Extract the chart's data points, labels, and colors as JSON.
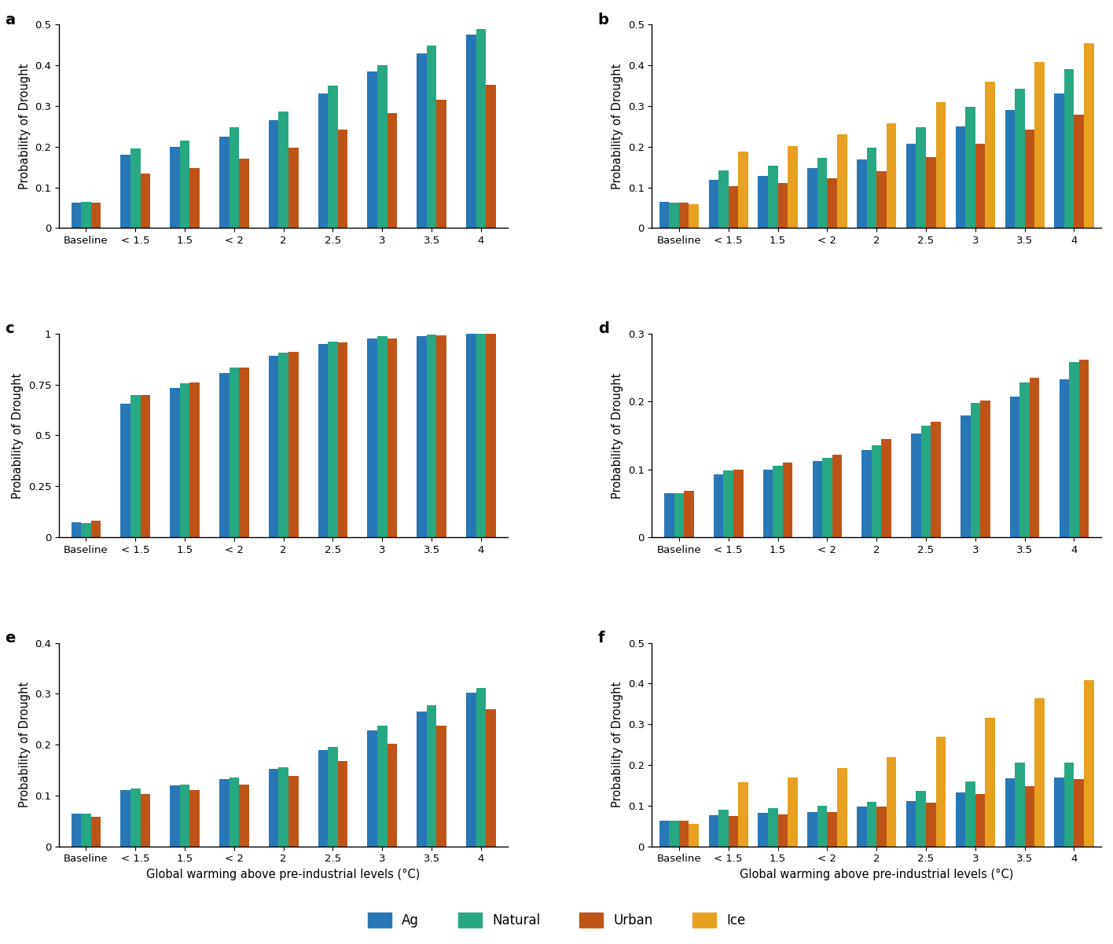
{
  "categories": [
    "Baseline",
    "< 1.5",
    "1.5",
    "< 2",
    "2",
    "2.5",
    "3",
    "3.5",
    "4"
  ],
  "colors": {
    "Ag": "#2878b8",
    "Natural": "#28a882",
    "Urban": "#bf5418",
    "Ice": "#e8a020"
  },
  "series_names": [
    "Ag",
    "Natural",
    "Urban",
    "Ice"
  ],
  "panels": {
    "a": {
      "ylim": [
        0,
        0.5
      ],
      "yticks": [
        0.0,
        0.1,
        0.2,
        0.3,
        0.4,
        0.5
      ],
      "data": {
        "Ag": [
          0.063,
          0.18,
          0.2,
          0.225,
          0.265,
          0.33,
          0.385,
          0.43,
          0.475
        ],
        "Natural": [
          0.065,
          0.195,
          0.215,
          0.248,
          0.287,
          0.35,
          0.4,
          0.448,
          0.49
        ],
        "Urban": [
          0.063,
          0.133,
          0.148,
          0.17,
          0.197,
          0.241,
          0.282,
          0.316,
          0.352
        ],
        "Ice": [
          null,
          null,
          null,
          null,
          null,
          null,
          null,
          null,
          null
        ]
      }
    },
    "b": {
      "ylim": [
        0,
        0.5
      ],
      "yticks": [
        0.0,
        0.1,
        0.2,
        0.3,
        0.4,
        0.5
      ],
      "data": {
        "Ag": [
          0.065,
          0.118,
          0.128,
          0.147,
          0.168,
          0.208,
          0.25,
          0.29,
          0.33
        ],
        "Natural": [
          0.063,
          0.142,
          0.154,
          0.173,
          0.198,
          0.248,
          0.298,
          0.342,
          0.39
        ],
        "Urban": [
          0.063,
          0.102,
          0.11,
          0.122,
          0.14,
          0.175,
          0.208,
          0.242,
          0.278
        ],
        "Ice": [
          0.058,
          0.188,
          0.202,
          0.23,
          0.258,
          0.31,
          0.36,
          0.408,
          0.455
        ]
      }
    },
    "c": {
      "ylim": [
        0,
        1.0
      ],
      "yticks": [
        0.0,
        0.25,
        0.5,
        0.75,
        1.0
      ],
      "data": {
        "Ag": [
          0.075,
          0.655,
          0.735,
          0.808,
          0.89,
          0.95,
          0.975,
          0.99,
          0.998
        ],
        "Natural": [
          0.07,
          0.7,
          0.758,
          0.832,
          0.908,
          0.96,
          0.988,
          0.996,
          0.999
        ],
        "Urban": [
          0.08,
          0.7,
          0.76,
          0.835,
          0.91,
          0.958,
          0.975,
          0.992,
          0.998
        ],
        "Ice": [
          null,
          null,
          null,
          null,
          null,
          null,
          null,
          null,
          null
        ]
      }
    },
    "d": {
      "ylim": [
        0,
        0.3
      ],
      "yticks": [
        0.0,
        0.1,
        0.2,
        0.3
      ],
      "data": {
        "Ag": [
          0.065,
          0.093,
          0.1,
          0.112,
          0.128,
          0.153,
          0.18,
          0.207,
          0.233
        ],
        "Natural": [
          0.065,
          0.098,
          0.105,
          0.117,
          0.135,
          0.165,
          0.198,
          0.228,
          0.258
        ],
        "Urban": [
          0.068,
          0.1,
          0.11,
          0.122,
          0.145,
          0.17,
          0.202,
          0.235,
          0.262
        ],
        "Ice": [
          null,
          null,
          null,
          null,
          null,
          null,
          null,
          null,
          null
        ]
      }
    },
    "e": {
      "ylim": [
        0,
        0.4
      ],
      "yticks": [
        0.0,
        0.1,
        0.2,
        0.3,
        0.4
      ],
      "data": {
        "Ag": [
          0.065,
          0.11,
          0.12,
          0.132,
          0.152,
          0.19,
          0.228,
          0.265,
          0.302
        ],
        "Natural": [
          0.065,
          0.113,
          0.122,
          0.135,
          0.155,
          0.195,
          0.238,
          0.278,
          0.312
        ],
        "Urban": [
          0.058,
          0.103,
          0.11,
          0.122,
          0.138,
          0.168,
          0.202,
          0.238,
          0.27
        ],
        "Ice": [
          null,
          null,
          null,
          null,
          null,
          null,
          null,
          null,
          null
        ]
      }
    },
    "f": {
      "ylim": [
        0,
        0.5
      ],
      "yticks": [
        0.0,
        0.1,
        0.2,
        0.3,
        0.4,
        0.5
      ],
      "data": {
        "Ag": [
          0.063,
          0.077,
          0.082,
          0.085,
          0.097,
          0.112,
          0.132,
          0.168,
          0.17
        ],
        "Natural": [
          0.062,
          0.09,
          0.093,
          0.1,
          0.11,
          0.137,
          0.16,
          0.205,
          0.205
        ],
        "Urban": [
          0.063,
          0.075,
          0.078,
          0.085,
          0.097,
          0.108,
          0.128,
          0.148,
          0.165
        ],
        "Ice": [
          0.055,
          0.158,
          0.17,
          0.192,
          0.22,
          0.27,
          0.315,
          0.365,
          0.408
        ]
      }
    }
  },
  "panel_order": [
    "a",
    "b",
    "c",
    "d",
    "e",
    "f"
  ],
  "xlabel": "Global warming above pre-industrial levels (°C)",
  "ylabel": "Probability of Drought",
  "legend_labels": [
    "Ag",
    "Natural",
    "Urban",
    "Ice"
  ],
  "bar_width": 0.2,
  "figure_width": 14.16,
  "figure_height": 12.02
}
